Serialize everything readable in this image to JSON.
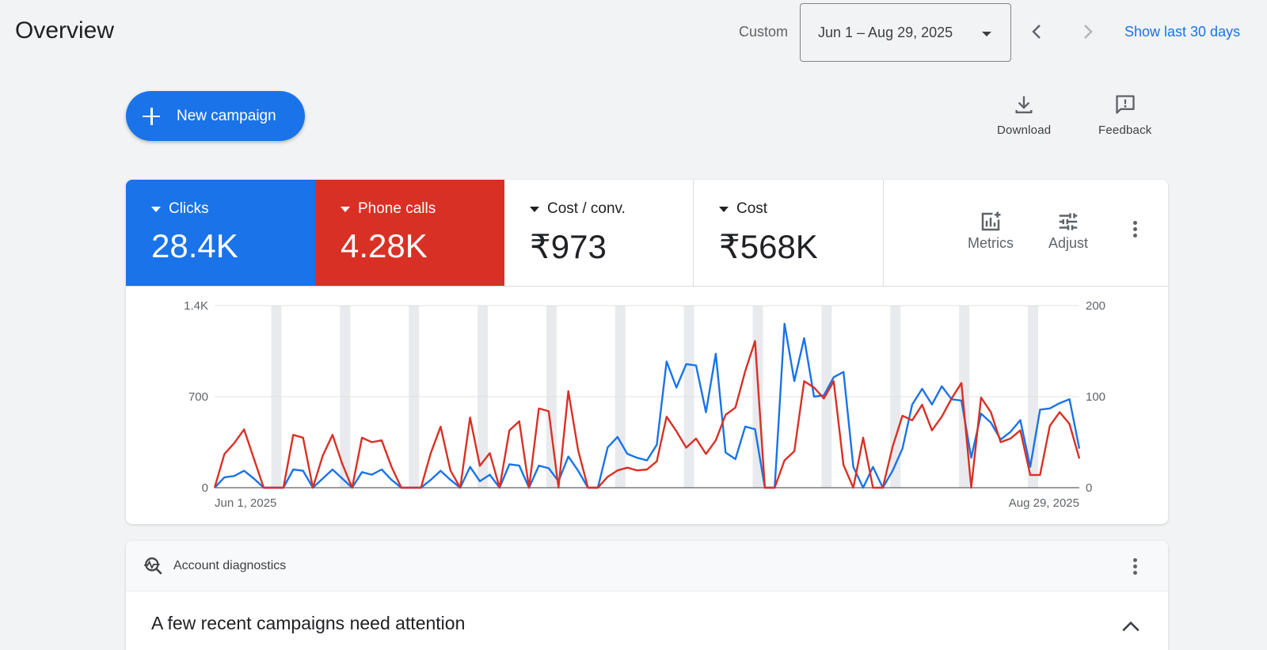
{
  "header": {
    "title": "Overview",
    "date_range_label": "Custom",
    "date_range_value": "Jun 1 – Aug 29, 2025",
    "show_last_label": "Show last 30 days"
  },
  "actions": {
    "new_campaign_label": "New campaign",
    "download_label": "Download",
    "feedback_label": "Feedback"
  },
  "metrics": {
    "tiles": [
      {
        "name": "Clicks",
        "value": "28.4K",
        "color": "#1a73e8"
      },
      {
        "name": "Phone calls",
        "value": "4.28K",
        "color": "#d93025"
      },
      {
        "name": "Cost / conv.",
        "value": "₹973"
      },
      {
        "name": "Cost",
        "value": "₹568K"
      }
    ],
    "metrics_label": "Metrics",
    "adjust_label": "Adjust"
  },
  "chart_data": {
    "type": "line",
    "left_axis": {
      "ticks": [
        "0",
        "700",
        "1.4K"
      ],
      "max": 1400
    },
    "right_axis": {
      "ticks": [
        "0",
        "100",
        "200"
      ],
      "max": 200
    },
    "x_labels": [
      "Jun 1, 2025",
      "Aug 29, 2025"
    ],
    "grid": true,
    "weekend_bands": true,
    "series": [
      {
        "axis": "left",
        "color": "#1a73e8",
        "values": [
          0,
          80,
          90,
          130,
          70,
          0,
          0,
          0,
          140,
          130,
          0,
          70,
          140,
          70,
          0,
          120,
          100,
          140,
          60,
          0,
          0,
          0,
          60,
          130,
          60,
          0,
          160,
          50,
          100,
          0,
          180,
          170,
          0,
          170,
          150,
          50,
          240,
          130,
          0,
          0,
          310,
          390,
          260,
          230,
          210,
          330,
          970,
          770,
          950,
          940,
          580,
          1030,
          270,
          220,
          470,
          450,
          0,
          0,
          1260,
          820,
          1150,
          700,
          710,
          850,
          890,
          160,
          0,
          160,
          0,
          130,
          300,
          640,
          760,
          640,
          780,
          680,
          670,
          230,
          570,
          500,
          370,
          430,
          520,
          160,
          600,
          610,
          650,
          680,
          300
        ]
      },
      {
        "axis": "right",
        "color": "#d93025",
        "values": [
          0,
          37,
          49,
          64,
          32,
          0,
          0,
          0,
          58,
          55,
          0,
          35,
          58,
          26,
          0,
          55,
          50,
          52,
          23,
          0,
          0,
          0,
          38,
          67,
          19,
          0,
          77,
          24,
          38,
          0,
          63,
          73,
          0,
          87,
          84,
          0,
          106,
          41,
          0,
          0,
          12,
          19,
          22,
          19,
          20,
          29,
          78,
          62,
          44,
          54,
          37,
          52,
          80,
          88,
          128,
          161,
          0,
          0,
          30,
          40,
          117,
          110,
          98,
          117,
          25,
          0,
          55,
          0,
          0,
          45,
          79,
          74,
          91,
          63,
          78,
          98,
          115,
          0,
          99,
          83,
          50,
          54,
          63,
          14,
          14,
          68,
          83,
          70,
          32
        ]
      }
    ]
  },
  "diagnostics": {
    "header_label": "Account diagnostics",
    "title": "A few recent campaigns need attention"
  }
}
